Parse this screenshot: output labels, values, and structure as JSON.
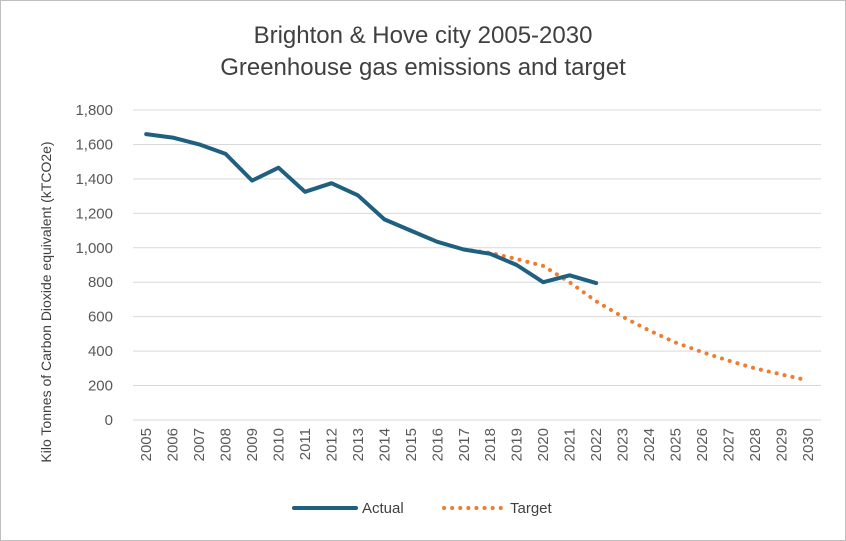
{
  "chart_data": {
    "type": "line",
    "title_lines": [
      "Brighton & Hove city 2005-2030",
      "Greenhouse gas emissions and target"
    ],
    "ylabel": "Kilo Tonnes of Carbon Dioxide equivalent (kTCO2e)",
    "xlabel": "",
    "ylim": [
      0,
      1800
    ],
    "ytick_values": [
      0,
      200,
      400,
      600,
      800,
      1000,
      1200,
      1400,
      1600,
      1800
    ],
    "ytick_labels": [
      "0",
      "200",
      "400",
      "600",
      "800",
      "1,000",
      "1,200",
      "1,400",
      "1,600",
      "1,800"
    ],
    "categories": [
      "2005",
      "2006",
      "2007",
      "2008",
      "2009",
      "2010",
      "2011",
      "2012",
      "2013",
      "2014",
      "2015",
      "2016",
      "2017",
      "2018",
      "2019",
      "2020",
      "2021",
      "2022",
      "2023",
      "2024",
      "2025",
      "2026",
      "2027",
      "2028",
      "2029",
      "2030"
    ],
    "grid": true,
    "legend_position": "bottom",
    "series": [
      {
        "name": "Actual",
        "color": "#1f5f7f",
        "style": "solid",
        "x": [
          "2005",
          "2006",
          "2007",
          "2008",
          "2009",
          "2010",
          "2011",
          "2012",
          "2013",
          "2014",
          "2015",
          "2016",
          "2017",
          "2018",
          "2019",
          "2020",
          "2021",
          "2022"
        ],
        "values": [
          1660,
          1640,
          1600,
          1545,
          1390,
          1465,
          1325,
          1375,
          1305,
          1165,
          1100,
          1035,
          990,
          965,
          900,
          800,
          840,
          795
        ]
      },
      {
        "name": "Target",
        "color": "#ed7d31",
        "style": "dotted",
        "x": [
          "2017",
          "2018",
          "2019",
          "2020",
          "2021",
          "2022",
          "2023",
          "2024",
          "2025",
          "2026",
          "2027",
          "2028",
          "2029",
          "2030"
        ],
        "values": [
          990,
          970,
          935,
          895,
          800,
          690,
          600,
          520,
          450,
          395,
          345,
          300,
          265,
          230
        ]
      }
    ]
  }
}
